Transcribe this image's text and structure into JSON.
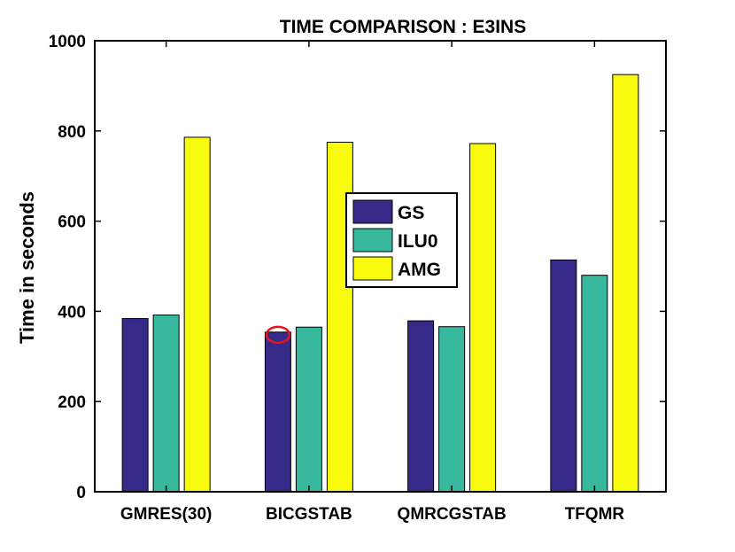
{
  "chart_data": {
    "type": "bar",
    "title": "TIME COMPARISON : E3INS",
    "xlabel": "",
    "ylabel": "Time in seconds",
    "ylim": [
      0,
      1000
    ],
    "yticks": [
      0,
      200,
      400,
      600,
      800,
      1000
    ],
    "grid": false,
    "legend_position": "center",
    "categories": [
      "GMRES(30)",
      "BICGSTAB",
      "QMRCGSTAB",
      "TFQMR"
    ],
    "series": [
      {
        "name": "GS",
        "color": "#352a87",
        "values": [
          384,
          354,
          379,
          514
        ]
      },
      {
        "name": "ILU0",
        "color": "#38b99e",
        "values": [
          392,
          365,
          366,
          480
        ]
      },
      {
        "name": "AMG",
        "color": "#f9fb0e",
        "values": [
          786,
          775,
          772,
          925
        ]
      }
    ],
    "annotation": {
      "type": "red-ellipse",
      "category": "BICGSTAB",
      "series": "GS",
      "color": "#e8141c"
    }
  }
}
